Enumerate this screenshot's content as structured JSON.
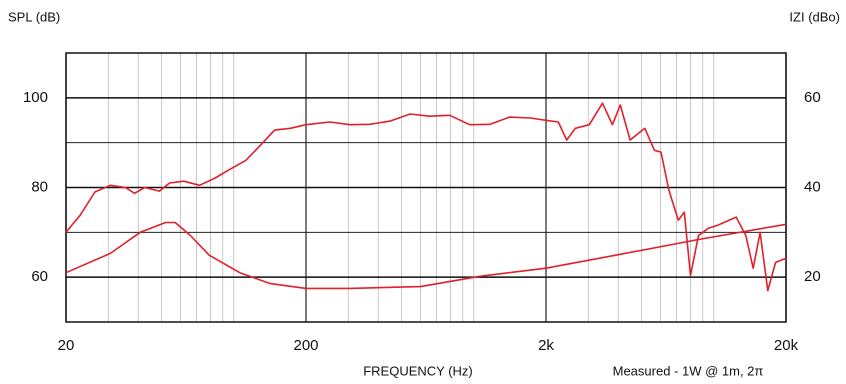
{
  "chart_data": {
    "type": "line",
    "xscale": "log",
    "y_label": "SPL (dB)",
    "y2_label": "IZI (dBo)",
    "x_label": "FREQUENCY (Hz)",
    "note": "Measured - 1W @ 1m, 2π",
    "xlim": [
      20,
      20000
    ],
    "xticks": [
      20,
      200,
      {
        "value": 2000,
        "label": "2k"
      },
      {
        "value": 20000,
        "label": "20k"
      }
    ],
    "ylim": [
      50,
      110
    ],
    "yticks": [
      60,
      80,
      100
    ],
    "y2lim": [
      10,
      70
    ],
    "y2ticks": [
      20,
      40,
      60
    ],
    "grid": true,
    "series": [
      {
        "color": "#e0202a",
        "x": [
          20,
          22.9,
          26.4,
          30.6,
          35.4,
          38.6,
          42.6,
          49,
          54,
          62,
          72,
          83,
          96,
          112,
          129,
          148,
          172,
          200,
          251,
          305,
          369,
          448,
          543,
          653,
          794,
          962,
          1170,
          1410,
          1720,
          2000,
          2250,
          2440,
          2650,
          3030,
          3440,
          3780,
          4080,
          4480,
          5160,
          5660,
          6030,
          6500,
          7120,
          7540,
          8000,
          8640,
          9500,
          10400,
          12400,
          13600,
          14600,
          15600,
          16800,
          18100,
          20000
        ],
        "values": [
          70,
          73.8,
          79,
          80.5,
          80,
          78.7,
          80,
          79.2,
          81,
          81.4,
          80.5,
          82,
          84,
          86,
          89.4,
          92.8,
          93.2,
          94,
          94.6,
          94,
          94.1,
          94.8,
          96.4,
          95.9,
          96.1,
          94,
          94.1,
          95.7,
          95.5,
          95,
          94.6,
          90.6,
          93.2,
          94,
          98.8,
          94,
          98.4,
          90.6,
          93.2,
          88.3,
          87.9,
          79.4,
          72.7,
          74.5,
          60.4,
          69.3,
          70.9,
          71.6,
          73.4,
          69.3,
          62,
          70,
          57,
          63.3,
          64.2
        ]
      },
      {
        "color": "#e0202a",
        "axis": "y2",
        "x": [
          20,
          30.6,
          40.8,
          52,
          57,
          66,
          79,
          106,
          141,
          200,
          305,
          600,
          1060,
          2000,
          4080,
          8640,
          20000
        ],
        "values": [
          21,
          25.3,
          30,
          32.2,
          32.2,
          29.3,
          24.9,
          21,
          18.6,
          17.5,
          17.5,
          17.9,
          20.2,
          22,
          25.1,
          28.4,
          31.8
        ]
      }
    ]
  }
}
